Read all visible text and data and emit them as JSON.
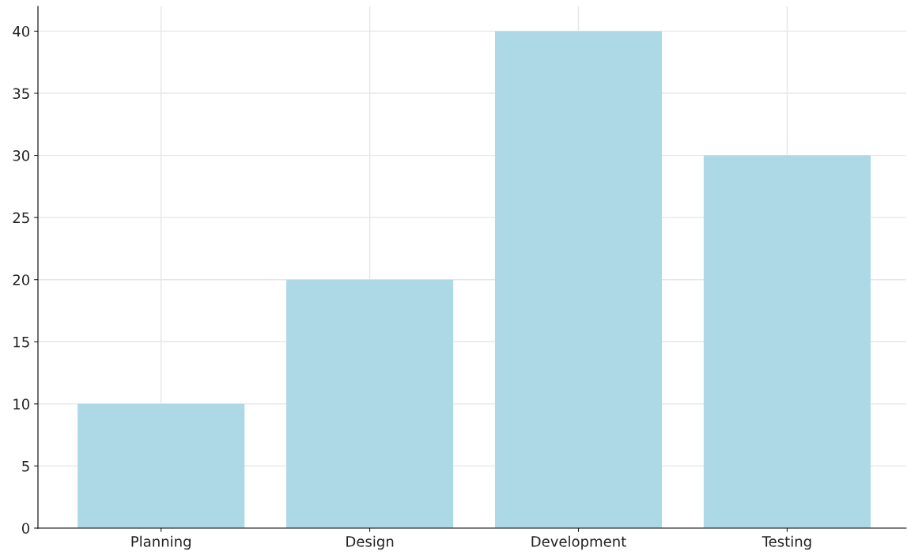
{
  "chart_data": {
    "type": "bar",
    "categories": [
      "Planning",
      "Design",
      "Development",
      "Testing"
    ],
    "values": [
      10,
      20,
      40,
      30
    ],
    "color": "#add8e6",
    "ylim": [
      0,
      42
    ],
    "yticks": [
      0,
      5,
      10,
      15,
      20,
      25,
      30,
      35,
      40
    ],
    "grid": true
  }
}
